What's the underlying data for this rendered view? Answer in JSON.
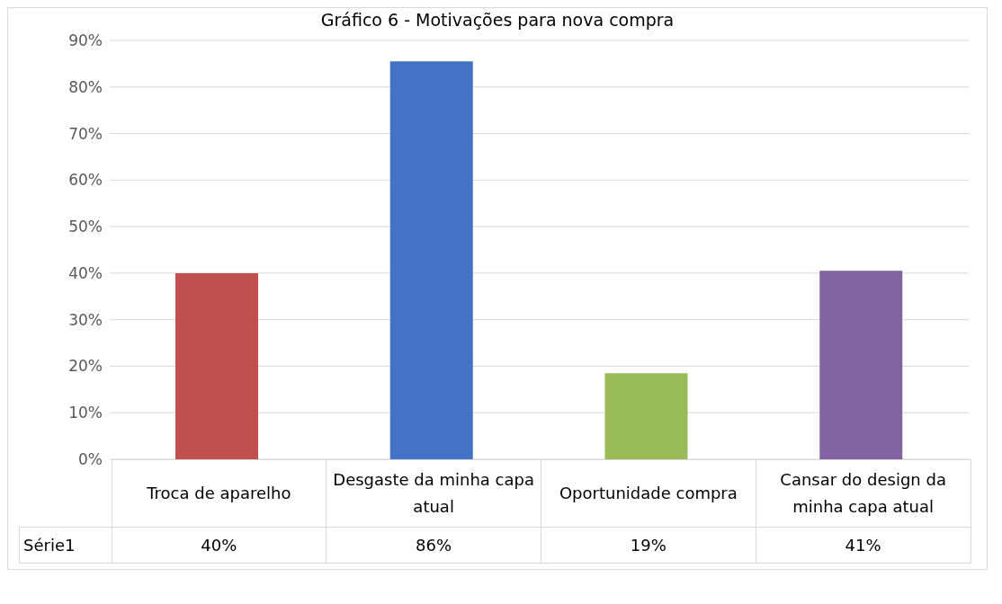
{
  "chart_data": {
    "type": "bar",
    "title": "Gráfico 6 - Motivações para nova compra",
    "categories": [
      "Troca de aparelho",
      "Desgaste da minha capa atual",
      "Oportunidade compra",
      "Cansar do design da minha capa atual"
    ],
    "series": [
      {
        "name": "Série1",
        "colors": [
          "#c0504d",
          "#4472c4",
          "#9bbb59",
          "#8064a2"
        ],
        "values": [
          40,
          85.5,
          18.5,
          40.5
        ],
        "value_labels": [
          "40%",
          "86%",
          "19%",
          "41%"
        ]
      }
    ],
    "ylim": [
      0,
      90
    ],
    "yticks": [
      {
        "value": 0,
        "label": "0%"
      },
      {
        "value": 10,
        "label": "10%"
      },
      {
        "value": 20,
        "label": "20%"
      },
      {
        "value": 30,
        "label": "30%"
      },
      {
        "value": 40,
        "label": "40%"
      },
      {
        "value": 50,
        "label": "50%"
      },
      {
        "value": 60,
        "label": "60%"
      },
      {
        "value": 70,
        "label": "70%"
      },
      {
        "value": 80,
        "label": "80%"
      },
      {
        "value": 90,
        "label": "90%"
      }
    ],
    "grid": "y"
  }
}
